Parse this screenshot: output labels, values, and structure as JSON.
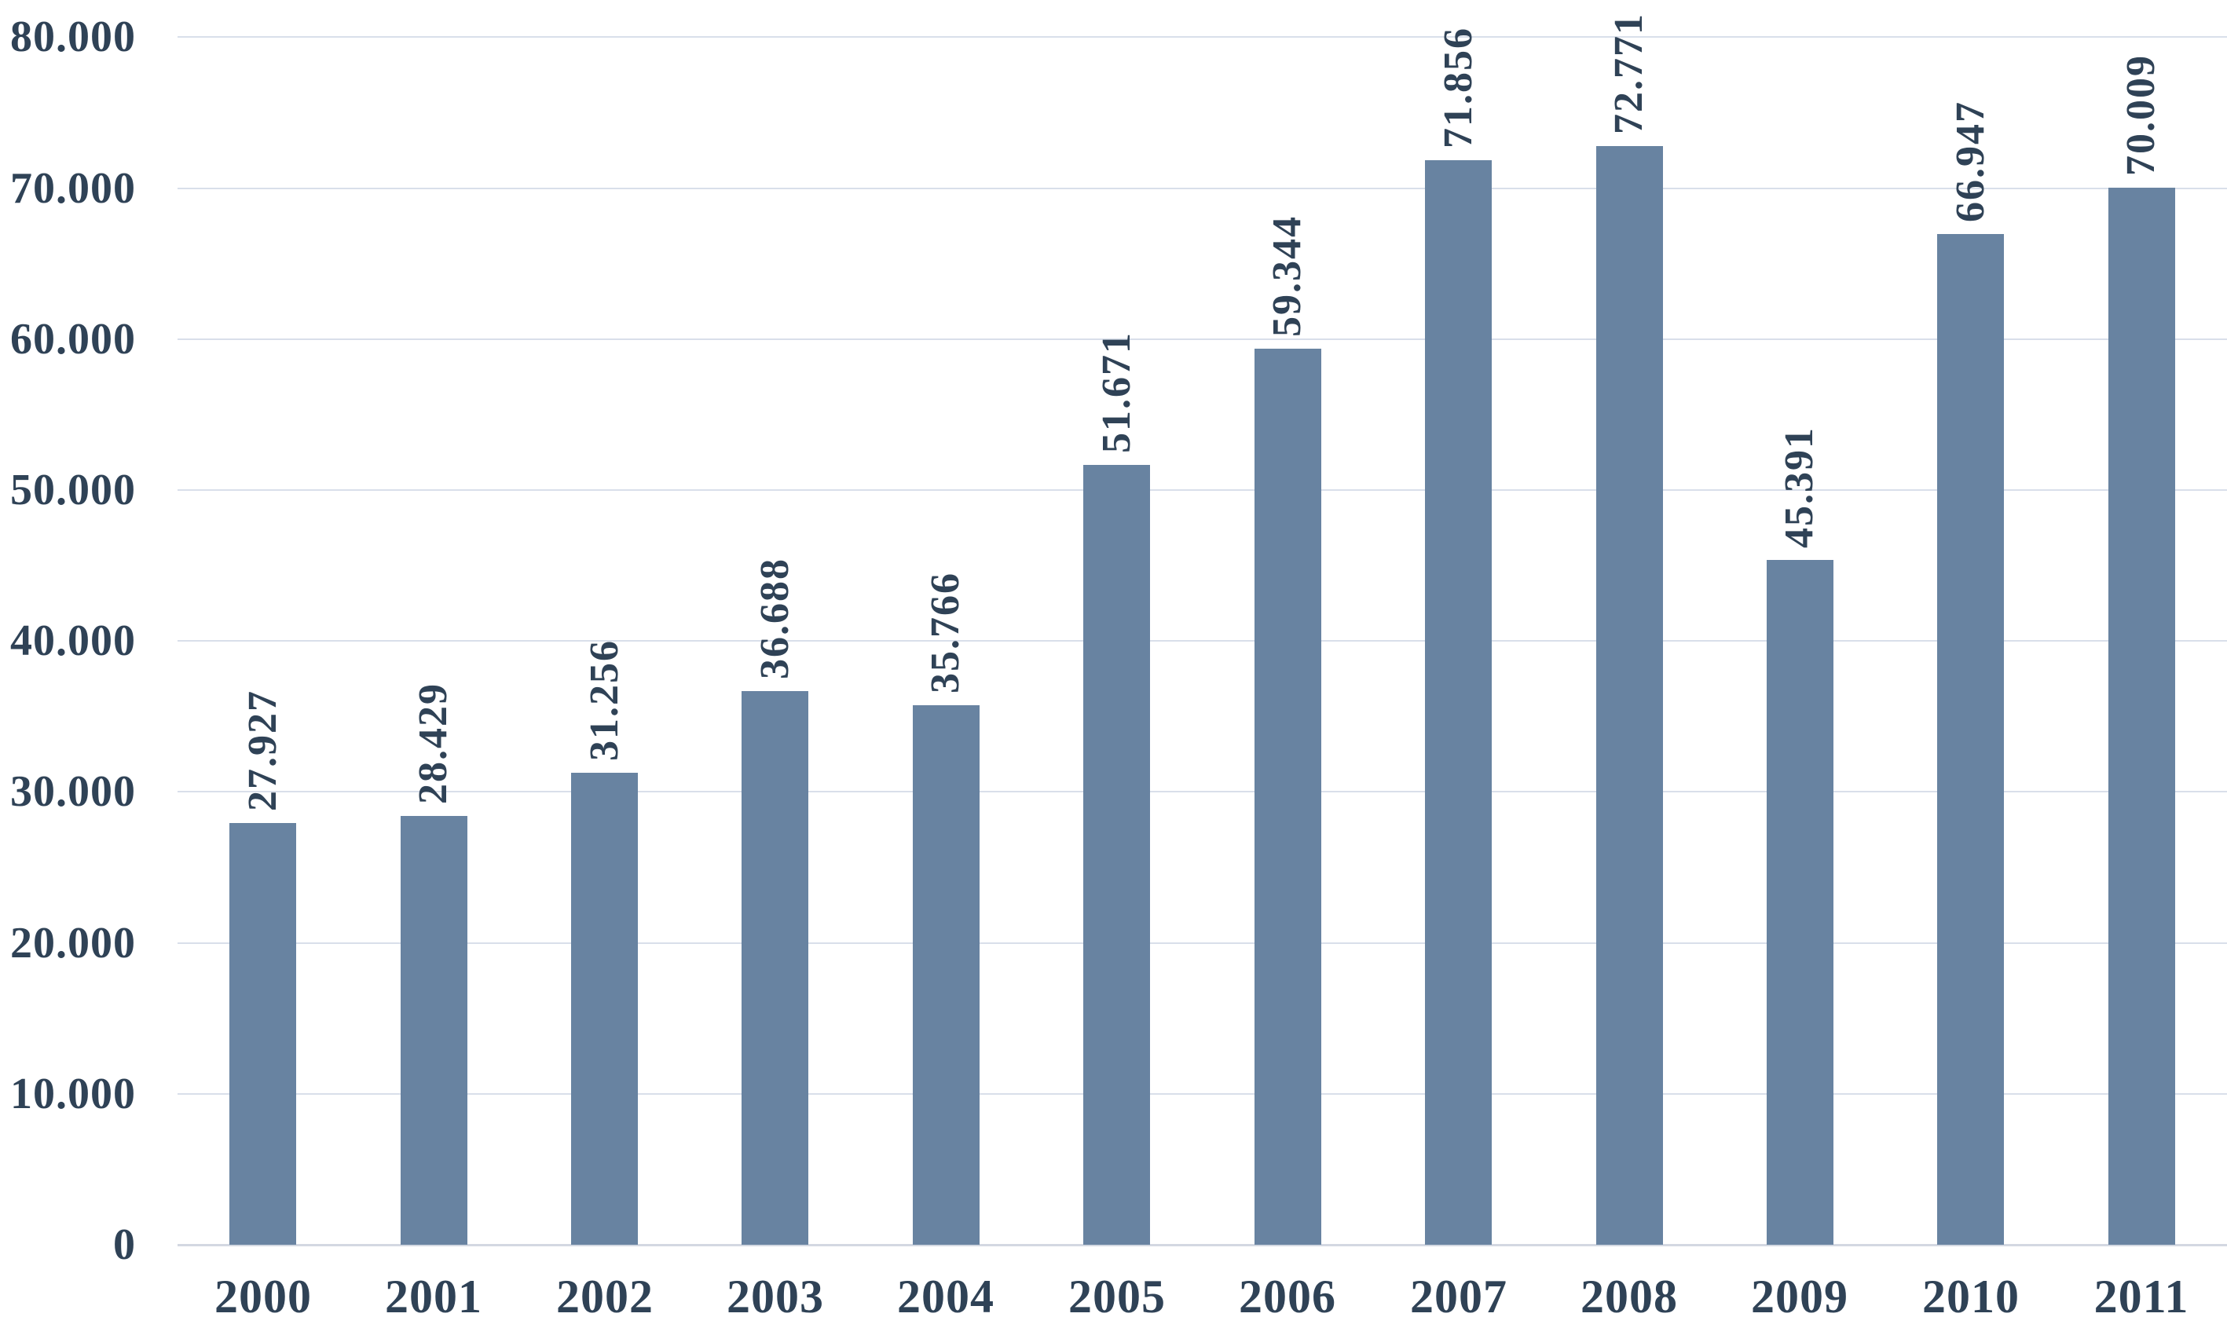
{
  "chart_data": {
    "type": "bar",
    "categories": [
      "2000",
      "2001",
      "2002",
      "2003",
      "2004",
      "2005",
      "2006",
      "2007",
      "2008",
      "2009",
      "2010",
      "2011"
    ],
    "values": [
      27927,
      28429,
      31256,
      36688,
      35766,
      51671,
      59344,
      71856,
      72771,
      45391,
      66947,
      70009
    ],
    "value_labels": [
      "27.927",
      "28.429",
      "31.256",
      "36.688",
      "35.766",
      "51.671",
      "59.344",
      "71.856",
      "72.771",
      "45.391",
      "66.947",
      "70.009"
    ],
    "y_axis": {
      "ticks": [
        "0",
        "10.000",
        "20.000",
        "30.000",
        "40.000",
        "50.000",
        "60.000",
        "70.000",
        "80.000"
      ],
      "min": 0,
      "max": 80000,
      "grid": true
    },
    "legend": null,
    "colors": {
      "bar": "#6883A1",
      "text": "#2F4256",
      "gridline": "#D9DFEA",
      "axis_line": "#D3D8E2",
      "background": "#FFFFFF"
    }
  }
}
